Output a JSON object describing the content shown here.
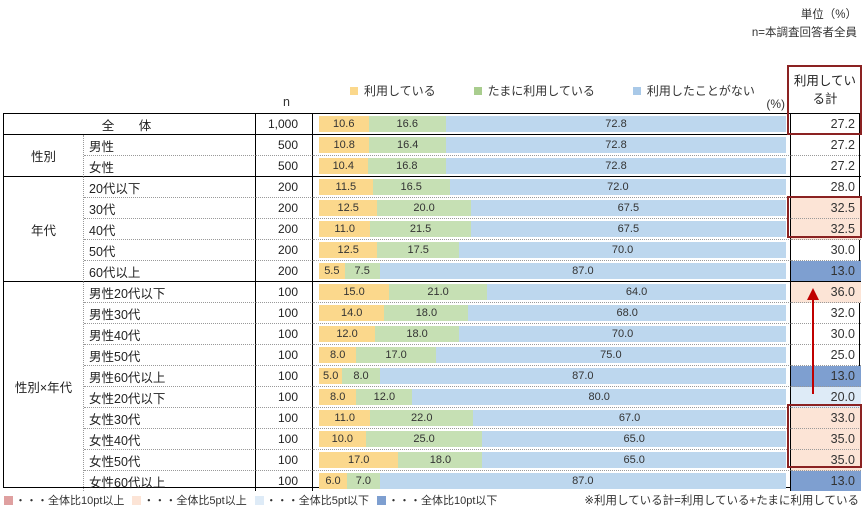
{
  "meta": {
    "unit_note": "単位（%）",
    "n_note": "n=本調査回答者全員"
  },
  "legend": {
    "items": [
      {
        "label": "利用している",
        "color": "#FBD88C"
      },
      {
        "label": "たまに利用している",
        "color": "#A9CD8E"
      },
      {
        "label": "利用したことがない",
        "color": "#A9C9E8"
      }
    ]
  },
  "table": {
    "n_header": "n",
    "pct_label": "(%)",
    "total_header": "利用している計",
    "groups": [
      {
        "label": "性別"
      },
      {
        "label": "年代"
      },
      {
        "label": "性別×年代"
      }
    ],
    "rows": [
      {
        "label": "全　体",
        "n": "1,000",
        "v1": "10.6",
        "v2": "16.6",
        "v3": "72.8",
        "total": "27.2",
        "bg": "none"
      },
      {
        "label": "男性",
        "n": "500",
        "v1": "10.8",
        "v2": "16.4",
        "v3": "72.8",
        "total": "27.2",
        "bg": "none"
      },
      {
        "label": "女性",
        "n": "500",
        "v1": "10.4",
        "v2": "16.8",
        "v3": "72.8",
        "total": "27.2",
        "bg": "none"
      },
      {
        "label": "20代以下",
        "n": "200",
        "v1": "11.5",
        "v2": "16.5",
        "v3": "72.0",
        "total": "28.0",
        "bg": "none"
      },
      {
        "label": "30代",
        "n": "200",
        "v1": "12.5",
        "v2": "20.0",
        "v3": "67.5",
        "total": "32.5",
        "bg": "peach"
      },
      {
        "label": "40代",
        "n": "200",
        "v1": "11.0",
        "v2": "21.5",
        "v3": "67.5",
        "total": "32.5",
        "bg": "peach"
      },
      {
        "label": "50代",
        "n": "200",
        "v1": "12.5",
        "v2": "17.5",
        "v3": "70.0",
        "total": "30.0",
        "bg": "none"
      },
      {
        "label": "60代以上",
        "n": "200",
        "v1": "5.5",
        "v2": "7.5",
        "v3": "87.0",
        "total": "13.0",
        "bg": "blue10"
      },
      {
        "label": "男性20代以下",
        "n": "100",
        "v1": "15.0",
        "v2": "21.0",
        "v3": "64.0",
        "total": "36.0",
        "bg": "peach"
      },
      {
        "label": "男性30代",
        "n": "100",
        "v1": "14.0",
        "v2": "18.0",
        "v3": "68.0",
        "total": "32.0",
        "bg": "none"
      },
      {
        "label": "男性40代",
        "n": "100",
        "v1": "12.0",
        "v2": "18.0",
        "v3": "70.0",
        "total": "30.0",
        "bg": "none"
      },
      {
        "label": "男性50代",
        "n": "100",
        "v1": "8.0",
        "v2": "17.0",
        "v3": "75.0",
        "total": "25.0",
        "bg": "none"
      },
      {
        "label": "男性60代以上",
        "n": "100",
        "v1": "5.0",
        "v2": "8.0",
        "v3": "87.0",
        "total": "13.0",
        "bg": "blue10"
      },
      {
        "label": "女性20代以下",
        "n": "100",
        "v1": "8.0",
        "v2": "12.0",
        "v3": "80.0",
        "total": "20.0",
        "bg": "blue5"
      },
      {
        "label": "女性30代",
        "n": "100",
        "v1": "11.0",
        "v2": "22.0",
        "v3": "67.0",
        "total": "33.0",
        "bg": "peach"
      },
      {
        "label": "女性40代",
        "n": "100",
        "v1": "10.0",
        "v2": "25.0",
        "v3": "65.0",
        "total": "35.0",
        "bg": "peach"
      },
      {
        "label": "女性50代",
        "n": "100",
        "v1": "17.0",
        "v2": "18.0",
        "v3": "65.0",
        "total": "35.0",
        "bg": "peach"
      },
      {
        "label": "女性60代以上",
        "n": "100",
        "v1": "6.0",
        "v2": "7.0",
        "v3": "87.0",
        "total": "13.0",
        "bg": "blue10"
      }
    ]
  },
  "footer": {
    "items": [
      {
        "label": "・・・全体比10pt以上",
        "color": "#DFA0A0"
      },
      {
        "label": "・・・全体比5pt以上",
        "color": "#FCE4D6"
      },
      {
        "label": "・・・全体比5pt以下",
        "color": "#DEEBF7"
      },
      {
        "label": "・・・全体比10pt以下",
        "color": "#7E9FD0"
      }
    ],
    "note": "※利用している計=利用している+たまに利用している"
  },
  "colors": {
    "bar_using": "#FBD88C",
    "bar_sometimes": "#C6E0B4",
    "bar_never": "#BDD7EE",
    "cell_peach": "#FCE4D6",
    "cell_blue10": "#7E9FD0",
    "cell_blue5": "#DEEBF7",
    "highlight_border": "#8B2222",
    "arrow": "#C00000"
  },
  "chart_data": {
    "type": "bar",
    "stacked": true,
    "orientation": "horizontal",
    "title": "利用状況（性別・年代別）",
    "unit": "%",
    "categories": [
      "全体",
      "男性",
      "女性",
      "20代以下",
      "30代",
      "40代",
      "50代",
      "60代以上",
      "男性20代以下",
      "男性30代",
      "男性40代",
      "男性50代",
      "男性60代以上",
      "女性20代以下",
      "女性30代",
      "女性40代",
      "女性50代",
      "女性60代以上"
    ],
    "n": [
      1000,
      500,
      500,
      200,
      200,
      200,
      200,
      200,
      100,
      100,
      100,
      100,
      100,
      100,
      100,
      100,
      100,
      100
    ],
    "series": [
      {
        "name": "利用している",
        "values": [
          10.6,
          10.8,
          10.4,
          11.5,
          12.5,
          11.0,
          12.5,
          5.5,
          15.0,
          14.0,
          12.0,
          8.0,
          5.0,
          8.0,
          11.0,
          10.0,
          17.0,
          6.0
        ]
      },
      {
        "name": "たまに利用している",
        "values": [
          16.6,
          16.4,
          16.8,
          16.5,
          20.0,
          21.5,
          17.5,
          7.5,
          21.0,
          18.0,
          18.0,
          17.0,
          8.0,
          12.0,
          22.0,
          25.0,
          18.0,
          7.0
        ]
      },
      {
        "name": "利用したことがない",
        "values": [
          72.8,
          72.8,
          72.8,
          72.0,
          67.5,
          67.5,
          70.0,
          87.0,
          64.0,
          68.0,
          70.0,
          75.0,
          87.0,
          80.0,
          67.0,
          65.0,
          65.0,
          87.0
        ]
      }
    ],
    "totals": {
      "name": "利用している計",
      "values": [
        27.2,
        27.2,
        27.2,
        28.0,
        32.5,
        32.5,
        30.0,
        13.0,
        36.0,
        32.0,
        30.0,
        25.0,
        13.0,
        20.0,
        33.0,
        35.0,
        35.0,
        13.0
      ]
    },
    "xlim": [
      0,
      100
    ],
    "legend_position": "top"
  }
}
